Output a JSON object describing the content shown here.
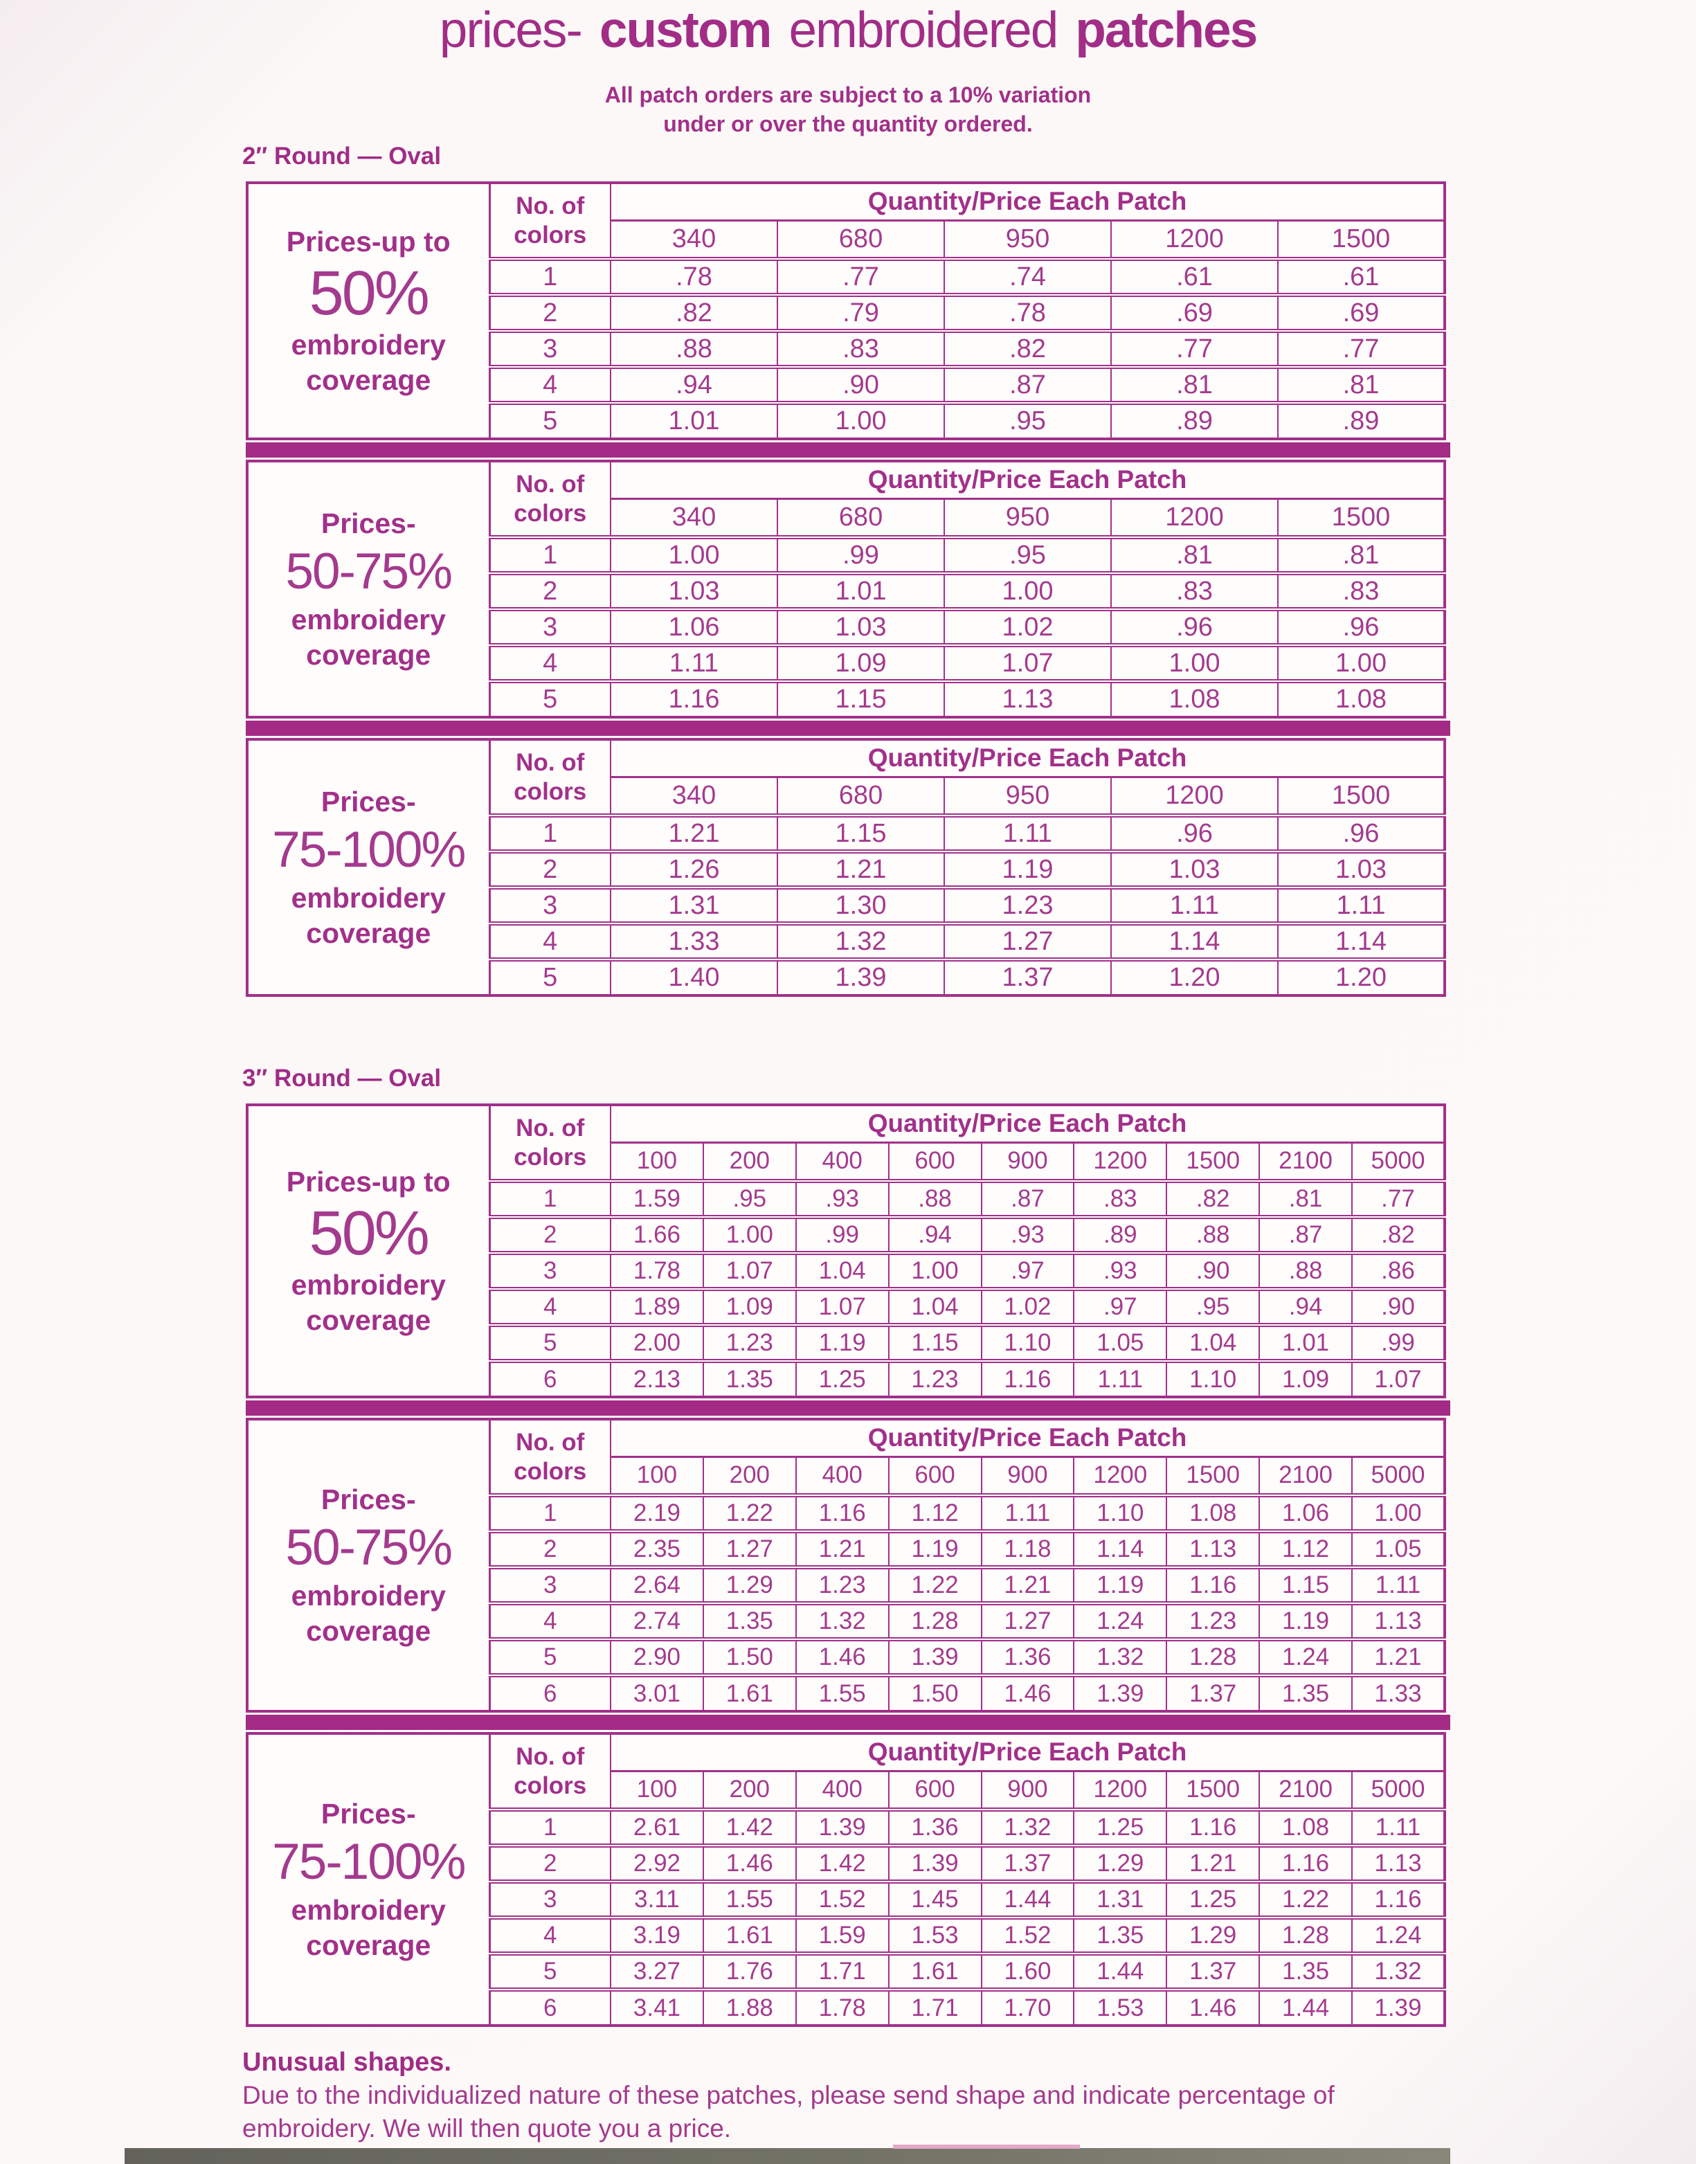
{
  "page": {
    "title_parts": [
      "prices-",
      "custom",
      "embroidered",
      "patches"
    ],
    "subtitle_line1": "All patch orders are subject to a 10% variation",
    "subtitle_line2": "under or over the quantity ordered.",
    "footer_heading": "Unusual shapes.",
    "footer_line1": "Due to the individualized nature of these patches, please send shape and indicate percentage of",
    "footer_line2": "embroidery. We will then quote you a price."
  },
  "colors": {
    "ink": "#a2308a",
    "band": "#a32b85",
    "page_background": "#fbf7f6"
  },
  "table_header": {
    "colors_label": "No. of\ncolors",
    "quantity_label": "Quantity/Price Each Patch"
  },
  "sections": [
    {
      "size_label": "2″ Round — Oval",
      "quantities": [
        "340",
        "680",
        "950",
        "1200",
        "1500"
      ],
      "tables": [
        {
          "coverage": {
            "prefix": "Prices-up to",
            "big": "50%",
            "suffix1": "embroidery",
            "suffix2": "coverage"
          },
          "rows": [
            {
              "colors": "1",
              "prices": [
                ".78",
                ".77",
                ".74",
                ".61",
                ".61"
              ]
            },
            {
              "colors": "2",
              "prices": [
                ".82",
                ".79",
                ".78",
                ".69",
                ".69"
              ]
            },
            {
              "colors": "3",
              "prices": [
                ".88",
                ".83",
                ".82",
                ".77",
                ".77"
              ]
            },
            {
              "colors": "4",
              "prices": [
                ".94",
                ".90",
                ".87",
                ".81",
                ".81"
              ]
            },
            {
              "colors": "5",
              "prices": [
                "1.01",
                "1.00",
                ".95",
                ".89",
                ".89"
              ]
            }
          ]
        },
        {
          "coverage": {
            "prefix": "Prices-",
            "big": "50-75%",
            "suffix1": "embroidery",
            "suffix2": "coverage"
          },
          "rows": [
            {
              "colors": "1",
              "prices": [
                "1.00",
                ".99",
                ".95",
                ".81",
                ".81"
              ]
            },
            {
              "colors": "2",
              "prices": [
                "1.03",
                "1.01",
                "1.00",
                ".83",
                ".83"
              ]
            },
            {
              "colors": "3",
              "prices": [
                "1.06",
                "1.03",
                "1.02",
                ".96",
                ".96"
              ]
            },
            {
              "colors": "4",
              "prices": [
                "1.11",
                "1.09",
                "1.07",
                "1.00",
                "1.00"
              ]
            },
            {
              "colors": "5",
              "prices": [
                "1.16",
                "1.15",
                "1.13",
                "1.08",
                "1.08"
              ]
            }
          ]
        },
        {
          "coverage": {
            "prefix": "Prices-",
            "big": "75-100%",
            "suffix1": "embroidery",
            "suffix2": "coverage"
          },
          "rows": [
            {
              "colors": "1",
              "prices": [
                "1.21",
                "1.15",
                "1.11",
                ".96",
                ".96"
              ]
            },
            {
              "colors": "2",
              "prices": [
                "1.26",
                "1.21",
                "1.19",
                "1.03",
                "1.03"
              ]
            },
            {
              "colors": "3",
              "prices": [
                "1.31",
                "1.30",
                "1.23",
                "1.11",
                "1.11"
              ]
            },
            {
              "colors": "4",
              "prices": [
                "1.33",
                "1.32",
                "1.27",
                "1.14",
                "1.14"
              ]
            },
            {
              "colors": "5",
              "prices": [
                "1.40",
                "1.39",
                "1.37",
                "1.20",
                "1.20"
              ]
            }
          ]
        }
      ]
    },
    {
      "size_label": "3″ Round — Oval",
      "quantities": [
        "100",
        "200",
        "400",
        "600",
        "900",
        "1200",
        "1500",
        "2100",
        "5000"
      ],
      "tables": [
        {
          "coverage": {
            "prefix": "Prices-up to",
            "big": "50%",
            "suffix1": "embroidery",
            "suffix2": "coverage"
          },
          "rows": [
            {
              "colors": "1",
              "prices": [
                "1.59",
                ".95",
                ".93",
                ".88",
                ".87",
                ".83",
                ".82",
                ".81",
                ".77"
              ]
            },
            {
              "colors": "2",
              "prices": [
                "1.66",
                "1.00",
                ".99",
                ".94",
                ".93",
                ".89",
                ".88",
                ".87",
                ".82"
              ]
            },
            {
              "colors": "3",
              "prices": [
                "1.78",
                "1.07",
                "1.04",
                "1.00",
                ".97",
                ".93",
                ".90",
                ".88",
                ".86"
              ]
            },
            {
              "colors": "4",
              "prices": [
                "1.89",
                "1.09",
                "1.07",
                "1.04",
                "1.02",
                ".97",
                ".95",
                ".94",
                ".90"
              ]
            },
            {
              "colors": "5",
              "prices": [
                "2.00",
                "1.23",
                "1.19",
                "1.15",
                "1.10",
                "1.05",
                "1.04",
                "1.01",
                ".99"
              ]
            },
            {
              "colors": "6",
              "prices": [
                "2.13",
                "1.35",
                "1.25",
                "1.23",
                "1.16",
                "1.11",
                "1.10",
                "1.09",
                "1.07"
              ]
            }
          ]
        },
        {
          "coverage": {
            "prefix": "Prices-",
            "big": "50-75%",
            "suffix1": "embroidery",
            "suffix2": "coverage"
          },
          "rows": [
            {
              "colors": "1",
              "prices": [
                "2.19",
                "1.22",
                "1.16",
                "1.12",
                "1.11",
                "1.10",
                "1.08",
                "1.06",
                "1.00"
              ]
            },
            {
              "colors": "2",
              "prices": [
                "2.35",
                "1.27",
                "1.21",
                "1.19",
                "1.18",
                "1.14",
                "1.13",
                "1.12",
                "1.05"
              ]
            },
            {
              "colors": "3",
              "prices": [
                "2.64",
                "1.29",
                "1.23",
                "1.22",
                "1.21",
                "1.19",
                "1.16",
                "1.15",
                "1.11"
              ]
            },
            {
              "colors": "4",
              "prices": [
                "2.74",
                "1.35",
                "1.32",
                "1.28",
                "1.27",
                "1.24",
                "1.23",
                "1.19",
                "1.13"
              ]
            },
            {
              "colors": "5",
              "prices": [
                "2.90",
                "1.50",
                "1.46",
                "1.39",
                "1.36",
                "1.32",
                "1.28",
                "1.24",
                "1.21"
              ]
            },
            {
              "colors": "6",
              "prices": [
                "3.01",
                "1.61",
                "1.55",
                "1.50",
                "1.46",
                "1.39",
                "1.37",
                "1.35",
                "1.33"
              ]
            }
          ]
        },
        {
          "coverage": {
            "prefix": "Prices-",
            "big": "75-100%",
            "suffix1": "embroidery",
            "suffix2": "coverage"
          },
          "rows": [
            {
              "colors": "1",
              "prices": [
                "2.61",
                "1.42",
                "1.39",
                "1.36",
                "1.32",
                "1.25",
                "1.16",
                "1.08",
                "1.11"
              ]
            },
            {
              "colors": "2",
              "prices": [
                "2.92",
                "1.46",
                "1.42",
                "1.39",
                "1.37",
                "1.29",
                "1.21",
                "1.16",
                "1.13"
              ]
            },
            {
              "colors": "3",
              "prices": [
                "3.11",
                "1.55",
                "1.52",
                "1.45",
                "1.44",
                "1.31",
                "1.25",
                "1.22",
                "1.16"
              ]
            },
            {
              "colors": "4",
              "prices": [
                "3.19",
                "1.61",
                "1.59",
                "1.53",
                "1.52",
                "1.35",
                "1.29",
                "1.28",
                "1.24"
              ]
            },
            {
              "colors": "5",
              "prices": [
                "3.27",
                "1.76",
                "1.71",
                "1.61",
                "1.60",
                "1.44",
                "1.37",
                "1.35",
                "1.32"
              ]
            },
            {
              "colors": "6",
              "prices": [
                "3.41",
                "1.88",
                "1.78",
                "1.71",
                "1.70",
                "1.53",
                "1.46",
                "1.44",
                "1.39"
              ]
            }
          ]
        }
      ]
    }
  ]
}
